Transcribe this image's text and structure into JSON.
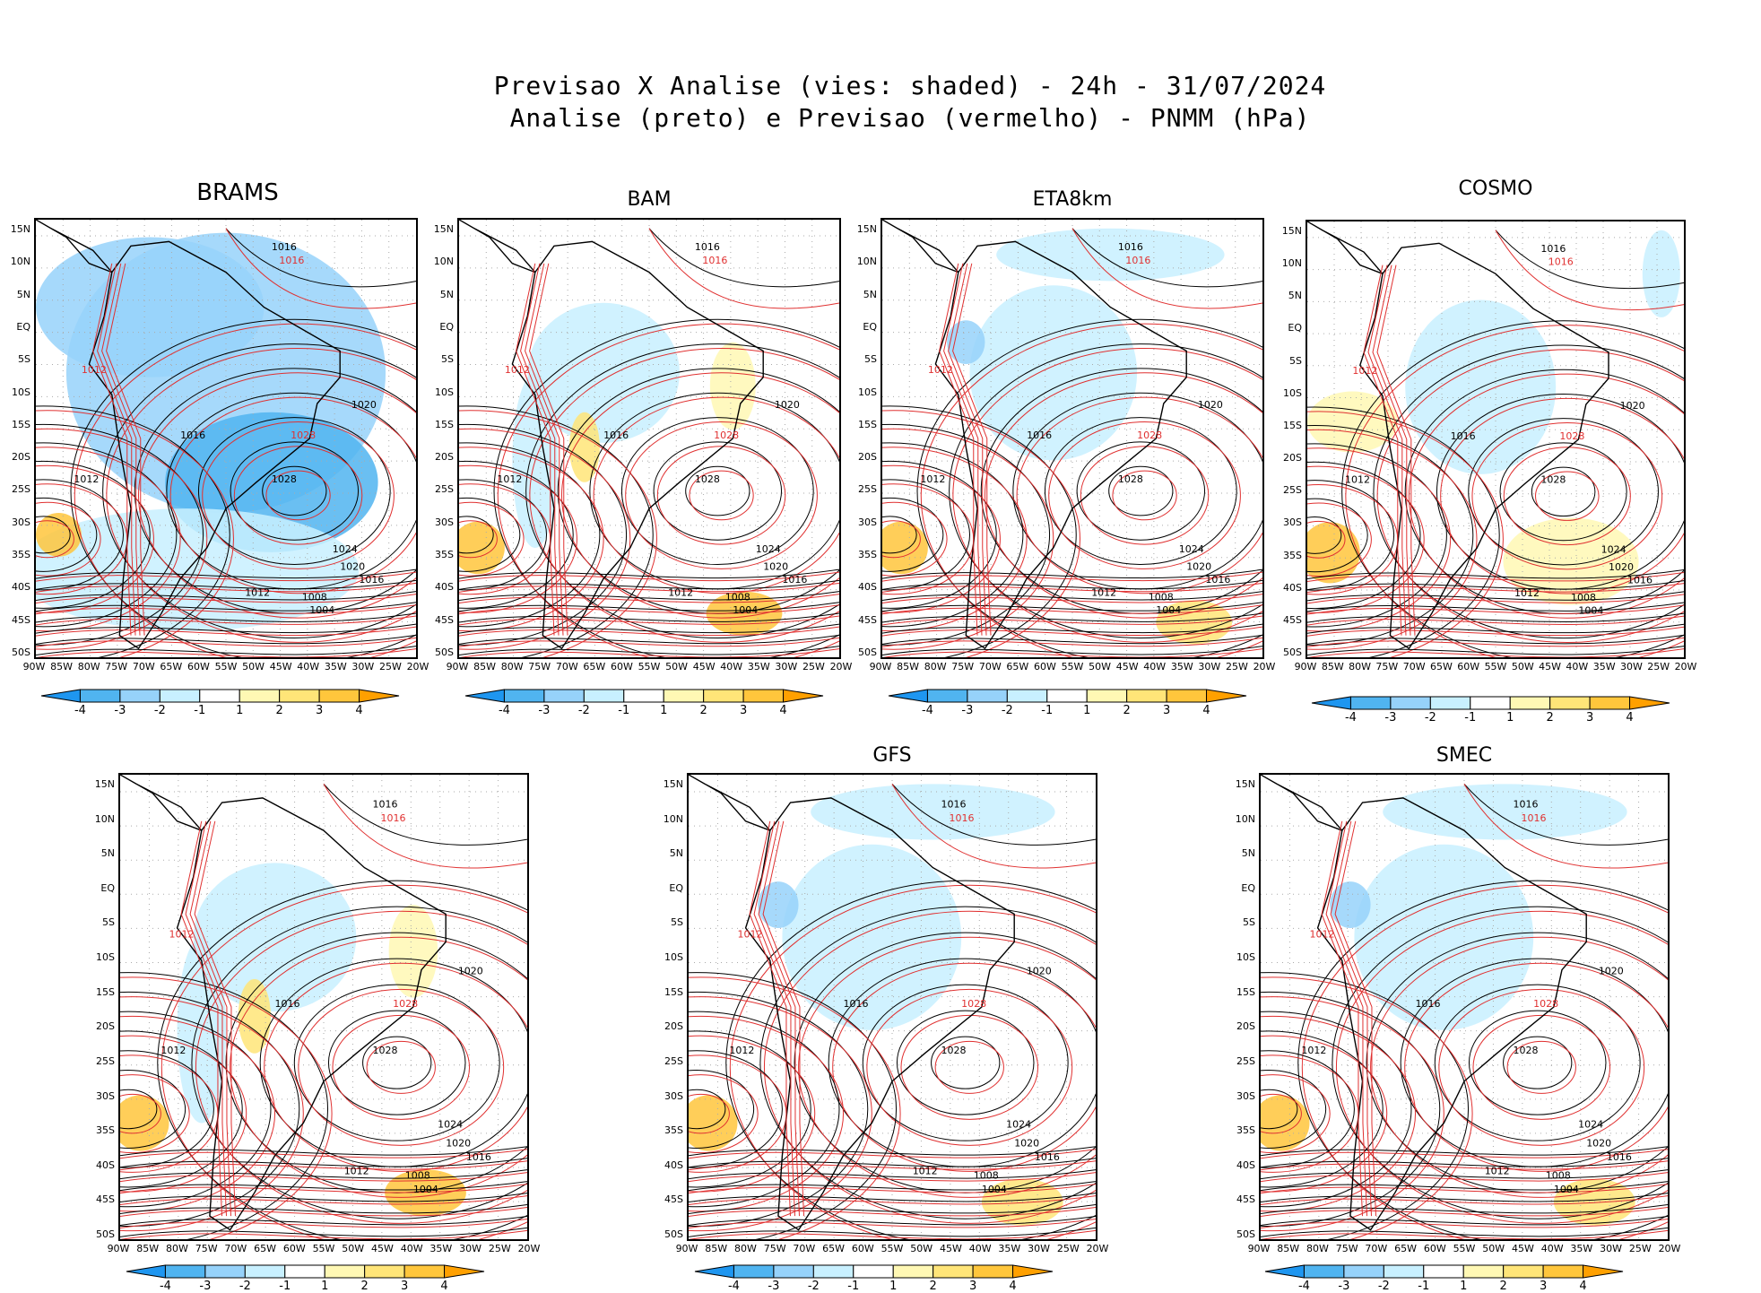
{
  "header": {
    "line1": "Previsao X Analise (vies: shaded) - 24h - 31/07/2024",
    "line2": "Analise (preto) e Previsao (vermelho) - PNMM (hPa)"
  },
  "lat_labels": [
    "15N",
    "10N",
    "5N",
    "EQ",
    "5S",
    "10S",
    "15S",
    "20S",
    "25S",
    "30S",
    "35S",
    "40S",
    "45S",
    "50S"
  ],
  "lon_labels": [
    "90W",
    "85W",
    "80W",
    "75W",
    "70W",
    "65W",
    "60W",
    "55W",
    "50W",
    "45W",
    "40W",
    "35W",
    "30W",
    "25W",
    "20W"
  ],
  "colorbar": {
    "labels": [
      "-4",
      "-3",
      "-2",
      "-1",
      "1",
      "2",
      "3",
      "4"
    ],
    "colors": [
      "#1e96f0",
      "#50b4f0",
      "#96d2fa",
      "#c8f0ff",
      "#ffffff",
      "#fff8b4",
      "#ffe578",
      "#ffc63c",
      "#ffa000"
    ]
  },
  "contours": {
    "analysis_color": "#000000",
    "forecast_color": "#e03030",
    "high_label": "1028",
    "levels": [
      "1004",
      "1008",
      "1012",
      "1016",
      "1020",
      "1024"
    ]
  },
  "panels": [
    {
      "name": "BRAMS",
      "bias": "negative-strong"
    },
    {
      "name": "BAM",
      "bias": "mixed"
    },
    {
      "name": "ETA8km",
      "bias": "negative-light"
    },
    {
      "name": "COSMO",
      "bias": "mixed-positive"
    },
    {
      "name": "",
      "bias": "mixed"
    },
    {
      "name": "GFS",
      "bias": "negative-light"
    },
    {
      "name": "SMEC",
      "bias": "negative-light"
    }
  ]
}
